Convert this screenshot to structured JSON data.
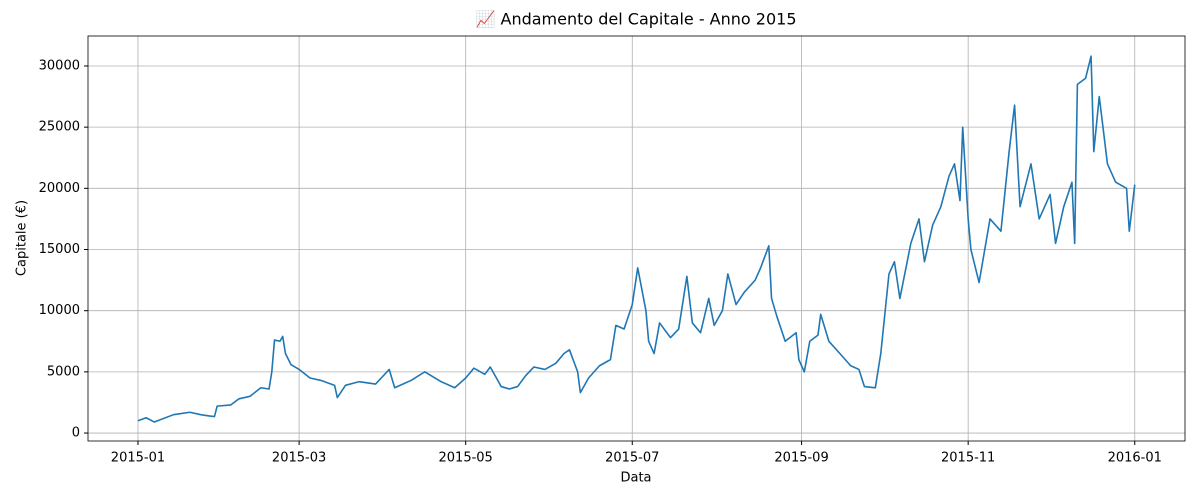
{
  "chart_data": {
    "type": "line",
    "title": "📈 Andamento del Capitale - Anno 2015",
    "xlabel": "Data",
    "ylabel": "Capitale (€)",
    "x": [
      0,
      3,
      6,
      13,
      19,
      23,
      26,
      28,
      29,
      34,
      37,
      41,
      45,
      48,
      49,
      50,
      52,
      53,
      54,
      56,
      59,
      63,
      67,
      72,
      73,
      76,
      81,
      87,
      92,
      94,
      100,
      105,
      111,
      116,
      120,
      123,
      127,
      129,
      133,
      136,
      139,
      142,
      145,
      149,
      153,
      156,
      158,
      161,
      162,
      165,
      169,
      173,
      175,
      178,
      181,
      183,
      186,
      187,
      189,
      191,
      195,
      198,
      201,
      203,
      206,
      209,
      211,
      214,
      216,
      219,
      222,
      226,
      228,
      231,
      232,
      234,
      237,
      241,
      242,
      244,
      246,
      249,
      250,
      253,
      257,
      261,
      264,
      266,
      270,
      272,
      275,
      277,
      279,
      283,
      286,
      288,
      291,
      294,
      297,
      299,
      301,
      302,
      304,
      305,
      308,
      312,
      316,
      319,
      321,
      323,
      327,
      330,
      334,
      336,
      339,
      342,
      343,
      344,
      347,
      349,
      350,
      352,
      355,
      358,
      362,
      363,
      365
    ],
    "series": [
      {
        "name": "Capitale",
        "color": "#1f77b4",
        "values": [
          1000,
          1250,
          900,
          1500,
          1700,
          1500,
          1400,
          1350,
          2200,
          2300,
          2800,
          3000,
          3700,
          3600,
          5000,
          7600,
          7500,
          7900,
          6500,
          5600,
          5200,
          4500,
          4300,
          3900,
          2900,
          3900,
          4200,
          4000,
          5200,
          3700,
          4300,
          5000,
          4200,
          3700,
          4500,
          5300,
          4800,
          5400,
          3800,
          3600,
          3800,
          4700,
          5400,
          5200,
          5700,
          6500,
          6800,
          5000,
          3300,
          4500,
          5500,
          6000,
          8800,
          8500,
          10500,
          13500,
          10000,
          7500,
          6500,
          9000,
          7800,
          8500,
          12800,
          9000,
          8200,
          11000,
          8800,
          10000,
          13000,
          10500,
          11500,
          12500,
          13500,
          15300,
          11000,
          9500,
          7500,
          8200,
          6000,
          5000,
          7500,
          8000,
          9700,
          7500,
          6500,
          5500,
          5200,
          3800,
          3700,
          6500,
          13000,
          14000,
          11000,
          15500,
          17500,
          14000,
          17000,
          18500,
          21000,
          22000,
          19000,
          25000,
          17500,
          15000,
          12300,
          17500,
          16500,
          23000,
          26800,
          18500,
          22000,
          17500,
          19500,
          15500,
          18500,
          20500,
          15500,
          28500,
          29000,
          30800,
          23000,
          27500,
          22000,
          20500,
          20000,
          16500,
          20300
        ]
      }
    ],
    "xlim": [
      -18.3,
      383.4
    ],
    "xticks": [
      {
        "value": 0,
        "label": "2015-01"
      },
      {
        "value": 59,
        "label": "2015-03"
      },
      {
        "value": 120,
        "label": "2015-05"
      },
      {
        "value": 181,
        "label": "2015-07"
      },
      {
        "value": 243,
        "label": "2015-09"
      },
      {
        "value": 304,
        "label": "2015-11"
      },
      {
        "value": 365,
        "label": "2016-01"
      }
    ],
    "ylim": [
      -650,
      32450
    ],
    "yticks": [
      0,
      5000,
      10000,
      15000,
      20000,
      25000,
      30000
    ],
    "grid": true
  }
}
